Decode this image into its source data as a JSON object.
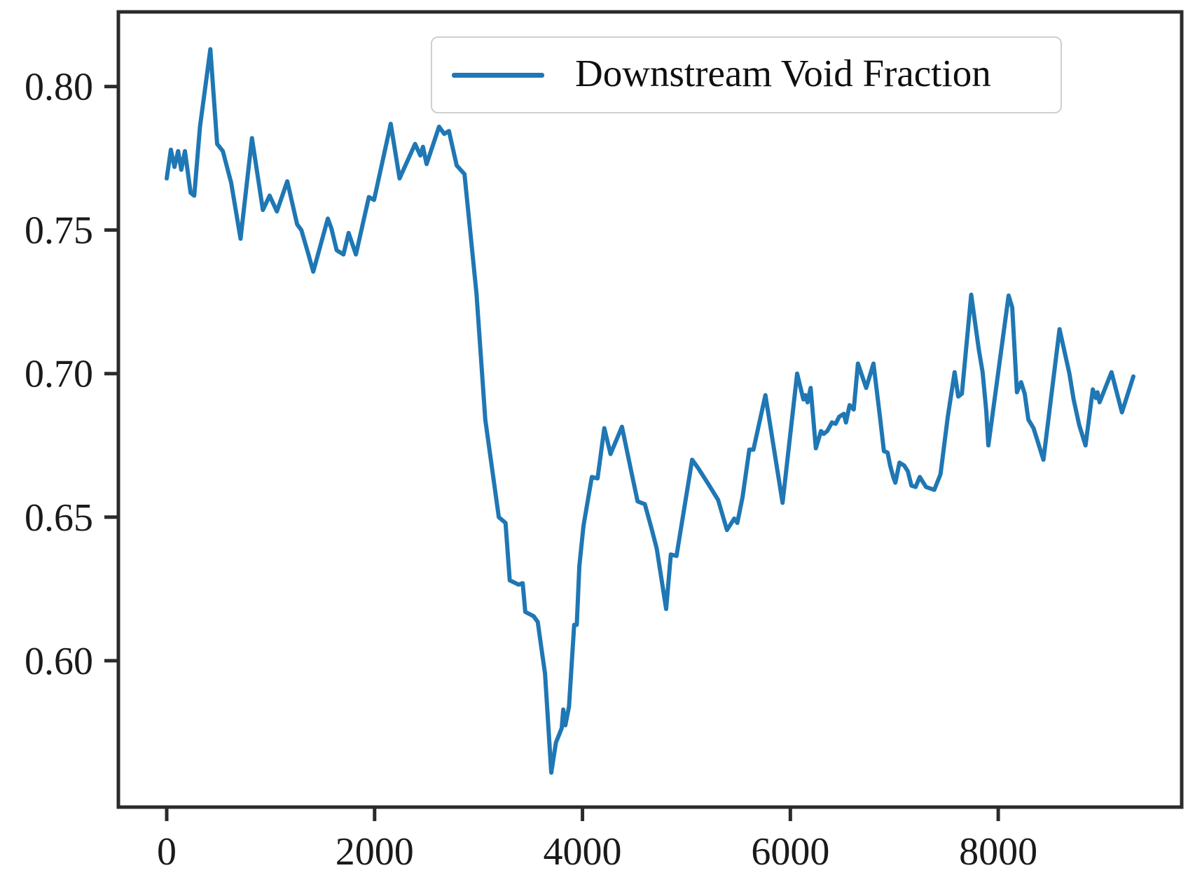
{
  "figure": {
    "background": "#ffffff",
    "text_color": "#1a1a1a",
    "spine_color": "#2b2b2b"
  },
  "chart_data": {
    "type": "line",
    "title": "",
    "xlabel": "",
    "ylabel": "",
    "grid": false,
    "xlim": [
      -465,
      9765
    ],
    "ylim": [
      0.549,
      0.826
    ],
    "xticks": {
      "values": [
        0,
        2000,
        4000,
        6000,
        8000
      ],
      "labels": [
        "0",
        "2000",
        "4000",
        "6000",
        "8000"
      ]
    },
    "yticks": {
      "values": [
        0.6,
        0.65,
        0.7,
        0.75,
        0.8
      ],
      "labels": [
        "0.60",
        "0.65",
        "0.70",
        "0.75",
        "0.80"
      ]
    },
    "legend": {
      "label": "Downstream Void Fraction",
      "position": "upper right"
    },
    "series": [
      {
        "name": "Downstream Void Fraction",
        "color": "#1f77b4",
        "points": [
          [
            0,
            0.768
          ],
          [
            40,
            0.778
          ],
          [
            75,
            0.772
          ],
          [
            110,
            0.7775
          ],
          [
            140,
            0.771
          ],
          [
            175,
            0.7775
          ],
          [
            230,
            0.763
          ],
          [
            265,
            0.762
          ],
          [
            320,
            0.786
          ],
          [
            420,
            0.813
          ],
          [
            485,
            0.78
          ],
          [
            540,
            0.7775
          ],
          [
            620,
            0.7665
          ],
          [
            710,
            0.747
          ],
          [
            820,
            0.782
          ],
          [
            925,
            0.757
          ],
          [
            990,
            0.762
          ],
          [
            1060,
            0.7565
          ],
          [
            1160,
            0.767
          ],
          [
            1255,
            0.752
          ],
          [
            1295,
            0.75
          ],
          [
            1360,
            0.742
          ],
          [
            1410,
            0.7355
          ],
          [
            1550,
            0.754
          ],
          [
            1585,
            0.7505
          ],
          [
            1635,
            0.743
          ],
          [
            1700,
            0.7415
          ],
          [
            1750,
            0.749
          ],
          [
            1820,
            0.7415
          ],
          [
            1945,
            0.7615
          ],
          [
            1995,
            0.7605
          ],
          [
            2155,
            0.787
          ],
          [
            2240,
            0.768
          ],
          [
            2390,
            0.78
          ],
          [
            2440,
            0.776
          ],
          [
            2465,
            0.779
          ],
          [
            2500,
            0.773
          ],
          [
            2620,
            0.786
          ],
          [
            2670,
            0.7835
          ],
          [
            2715,
            0.7845
          ],
          [
            2790,
            0.7725
          ],
          [
            2865,
            0.7695
          ],
          [
            2980,
            0.728
          ],
          [
            3065,
            0.684
          ],
          [
            3195,
            0.65
          ],
          [
            3260,
            0.648
          ],
          [
            3300,
            0.628
          ],
          [
            3385,
            0.6265
          ],
          [
            3425,
            0.627
          ],
          [
            3450,
            0.617
          ],
          [
            3530,
            0.6155
          ],
          [
            3570,
            0.6135
          ],
          [
            3610,
            0.603
          ],
          [
            3640,
            0.5955
          ],
          [
            3700,
            0.561
          ],
          [
            3745,
            0.5715
          ],
          [
            3800,
            0.5765
          ],
          [
            3815,
            0.583
          ],
          [
            3835,
            0.5775
          ],
          [
            3870,
            0.584
          ],
          [
            3920,
            0.6125
          ],
          [
            3945,
            0.6125
          ],
          [
            3970,
            0.633
          ],
          [
            4010,
            0.647
          ],
          [
            4090,
            0.664
          ],
          [
            4145,
            0.6635
          ],
          [
            4210,
            0.681
          ],
          [
            4270,
            0.672
          ],
          [
            4380,
            0.6815
          ],
          [
            4475,
            0.665
          ],
          [
            4510,
            0.659
          ],
          [
            4530,
            0.6555
          ],
          [
            4600,
            0.6545
          ],
          [
            4665,
            0.646
          ],
          [
            4715,
            0.639
          ],
          [
            4805,
            0.618
          ],
          [
            4850,
            0.637
          ],
          [
            4905,
            0.6365
          ],
          [
            4920,
            0.64
          ],
          [
            5055,
            0.67
          ],
          [
            5115,
            0.667
          ],
          [
            5220,
            0.661
          ],
          [
            5305,
            0.656
          ],
          [
            5390,
            0.6455
          ],
          [
            5460,
            0.6495
          ],
          [
            5490,
            0.648
          ],
          [
            5540,
            0.657
          ],
          [
            5605,
            0.6735
          ],
          [
            5645,
            0.6735
          ],
          [
            5760,
            0.6925
          ],
          [
            5925,
            0.655
          ],
          [
            6065,
            0.7
          ],
          [
            6125,
            0.691
          ],
          [
            6145,
            0.6925
          ],
          [
            6165,
            0.69
          ],
          [
            6195,
            0.695
          ],
          [
            6245,
            0.674
          ],
          [
            6295,
            0.68
          ],
          [
            6320,
            0.679
          ],
          [
            6355,
            0.68
          ],
          [
            6400,
            0.683
          ],
          [
            6435,
            0.6825
          ],
          [
            6470,
            0.685
          ],
          [
            6515,
            0.686
          ],
          [
            6535,
            0.683
          ],
          [
            6570,
            0.689
          ],
          [
            6610,
            0.6875
          ],
          [
            6650,
            0.7035
          ],
          [
            6730,
            0.695
          ],
          [
            6800,
            0.7035
          ],
          [
            6865,
            0.684
          ],
          [
            6900,
            0.673
          ],
          [
            6935,
            0.6725
          ],
          [
            6960,
            0.668
          ],
          [
            6990,
            0.664
          ],
          [
            7010,
            0.662
          ],
          [
            7050,
            0.669
          ],
          [
            7095,
            0.668
          ],
          [
            7130,
            0.666
          ],
          [
            7165,
            0.661
          ],
          [
            7205,
            0.6605
          ],
          [
            7245,
            0.664
          ],
          [
            7305,
            0.6605
          ],
          [
            7385,
            0.6595
          ],
          [
            7445,
            0.665
          ],
          [
            7515,
            0.685
          ],
          [
            7580,
            0.7005
          ],
          [
            7615,
            0.692
          ],
          [
            7650,
            0.693
          ],
          [
            7740,
            0.7275
          ],
          [
            7815,
            0.708
          ],
          [
            7850,
            0.7005
          ],
          [
            7885,
            0.687
          ],
          [
            7905,
            0.675
          ],
          [
            8100,
            0.7272
          ],
          [
            8135,
            0.723
          ],
          [
            8180,
            0.6935
          ],
          [
            8220,
            0.697
          ],
          [
            8255,
            0.693
          ],
          [
            8290,
            0.684
          ],
          [
            8340,
            0.681
          ],
          [
            8435,
            0.67
          ],
          [
            8590,
            0.7155
          ],
          [
            8685,
            0.7
          ],
          [
            8725,
            0.691
          ],
          [
            8780,
            0.682
          ],
          [
            8840,
            0.675
          ],
          [
            8910,
            0.6945
          ],
          [
            8940,
            0.6915
          ],
          [
            8955,
            0.6935
          ],
          [
            8975,
            0.69
          ],
          [
            9090,
            0.7005
          ],
          [
            9190,
            0.6865
          ],
          [
            9300,
            0.699
          ]
        ]
      }
    ]
  }
}
